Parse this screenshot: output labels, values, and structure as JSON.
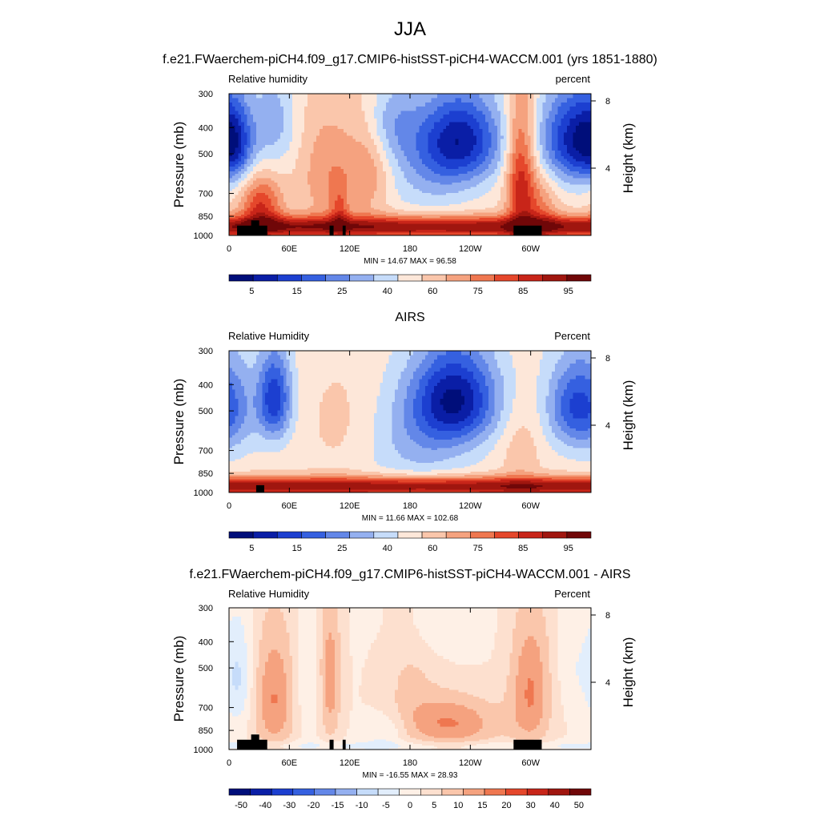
{
  "figure": {
    "title": "JJA",
    "subtitle": "f.e21.FWaerchem-piCH4.f09_g17.CMIP6-histSST-piCH4-WACCM.001 (yrs 1851-1880)"
  },
  "colors": {
    "palette_abs": [
      "#000e7a",
      "#0a1ea6",
      "#1c3fd0",
      "#3560e0",
      "#6387e8",
      "#94b0f0",
      "#c6dcfa",
      "#fde7d9",
      "#fac6ab",
      "#f5a27f",
      "#ef7750",
      "#e5472b",
      "#c82519",
      "#a0160f",
      "#700708"
    ],
    "palette_diff": [
      "#000e7a",
      "#0a1ea6",
      "#1c3fd0",
      "#3560e0",
      "#6387e8",
      "#94b0f0",
      "#c6dcfa",
      "#e2eefc",
      "#fef0e6",
      "#fde0cf",
      "#fac6ab",
      "#f5a27f",
      "#ef7750",
      "#e5472b",
      "#c82519",
      "#a0160f",
      "#700708"
    ],
    "land_mask": "#000000"
  },
  "chart_data": [
    {
      "type": "heatmap",
      "panel_title": "",
      "left_label": "Relative humidity",
      "right_label": "percent",
      "ylabel": "Pressure (mb)",
      "ylabel_right": "Height (km)",
      "x_ticks": [
        "0",
        "60E",
        "120E",
        "180",
        "120W",
        "60W"
      ],
      "x_tick_values": [
        0,
        60,
        120,
        180,
        240,
        300
      ],
      "xlim": [
        0,
        360
      ],
      "y_ticks": [
        "300",
        "400",
        "500",
        "700",
        "850",
        "1000"
      ],
      "y_tick_values": [
        300,
        400,
        500,
        700,
        850,
        1000
      ],
      "ylim": [
        300,
        1000
      ],
      "height_ticks": [
        "8",
        "4"
      ],
      "height_tick_values": [
        8,
        4
      ],
      "stats": "MIN =  14.67  MAX =  96.58",
      "colorbar_labels": [
        "5",
        "15",
        "25",
        "40",
        "60",
        "75",
        "85",
        "95"
      ],
      "palette": "abs",
      "value_range": [
        0,
        100
      ],
      "base_rh": 52,
      "field": [
        {
          "lon": 5,
          "p": 450,
          "a": -30,
          "sl": 14,
          "sp": 110
        },
        {
          "lon": 32,
          "p": 780,
          "a": 28,
          "sl": 14,
          "sp": 130
        },
        {
          "lon": 45,
          "p": 380,
          "a": -15,
          "sl": 15,
          "sp": 120
        },
        {
          "lon": 100,
          "p": 600,
          "a": 14,
          "sl": 20,
          "sp": 200
        },
        {
          "lon": 110,
          "p": 820,
          "a": 15,
          "sl": 6,
          "sp": 120
        },
        {
          "lon": 140,
          "p": 560,
          "a": 14,
          "sl": 15,
          "sp": 180
        },
        {
          "lon": 160,
          "p": 380,
          "a": -15,
          "sl": 20,
          "sp": 100
        },
        {
          "lon": 230,
          "p": 440,
          "a": -40,
          "sl": 30,
          "sp": 120
        },
        {
          "lon": 200,
          "p": 600,
          "a": -12,
          "sl": 35,
          "sp": 160
        },
        {
          "lon": 290,
          "p": 620,
          "a": 32,
          "sl": 10,
          "sp": 260
        },
        {
          "lon": 340,
          "p": 440,
          "a": -38,
          "sl": 22,
          "sp": 130
        },
        {
          "lon": 310,
          "p": 800,
          "a": 15,
          "sl": 12,
          "sp": 150
        }
      ],
      "boundary_layer": {
        "p": 930,
        "sp": 60,
        "a": 40
      },
      "land": [
        {
          "lon": [
            8,
            38
          ],
          "p": [
            920,
            1000
          ]
        },
        {
          "lon": [
            22,
            30
          ],
          "p": [
            880,
            1000
          ]
        },
        {
          "lon": [
            100,
            104
          ],
          "p": [
            920,
            1000
          ]
        },
        {
          "lon": [
            113,
            116
          ],
          "p": [
            920,
            1000
          ]
        },
        {
          "lon": [
            283,
            311
          ],
          "p": [
            920,
            1000
          ]
        }
      ]
    },
    {
      "type": "heatmap",
      "panel_title": "AIRS",
      "left_label": "Relative Humidity",
      "right_label": "Percent",
      "ylabel": "Pressure (mb)",
      "ylabel_right": "Height (km)",
      "x_ticks": [
        "0",
        "60E",
        "120E",
        "180",
        "120W",
        "60W"
      ],
      "x_tick_values": [
        0,
        60,
        120,
        180,
        240,
        300
      ],
      "xlim": [
        0,
        360
      ],
      "y_ticks": [
        "300",
        "400",
        "500",
        "700",
        "850",
        "1000"
      ],
      "y_tick_values": [
        300,
        400,
        500,
        700,
        850,
        1000
      ],
      "ylim": [
        300,
        1000
      ],
      "height_ticks": [
        "8",
        "4"
      ],
      "height_tick_values": [
        8,
        4
      ],
      "stats": "MIN =  11.66  MAX = 102.68",
      "colorbar_labels": [
        "5",
        "15",
        "25",
        "40",
        "60",
        "75",
        "85",
        "95"
      ],
      "palette": "abs",
      "value_range": [
        0,
        100
      ],
      "base_rh": 50,
      "field": [
        {
          "lon": 45,
          "p": 450,
          "a": -35,
          "sl": 12,
          "sp": 120
        },
        {
          "lon": 8,
          "p": 500,
          "a": -8,
          "sl": 15,
          "sp": 150
        },
        {
          "lon": 110,
          "p": 550,
          "a": 5,
          "sl": 25,
          "sp": 200
        },
        {
          "lon": 225,
          "p": 450,
          "a": -42,
          "sl": 30,
          "sp": 130
        },
        {
          "lon": 190,
          "p": 650,
          "a": -12,
          "sl": 35,
          "sp": 180
        },
        {
          "lon": 345,
          "p": 480,
          "a": -30,
          "sl": 20,
          "sp": 130
        },
        {
          "lon": 290,
          "p": 700,
          "a": 8,
          "sl": 15,
          "sp": 200
        }
      ],
      "boundary_layer": {
        "p": 950,
        "sp": 55,
        "a": 42
      },
      "land": [
        {
          "lon": [
            27,
            35
          ],
          "p": [
            940,
            1000
          ]
        }
      ]
    },
    {
      "type": "heatmap",
      "panel_title": "f.e21.FWaerchem-piCH4.f09_g17.CMIP6-histSST-piCH4-WACCM.001 - AIRS",
      "left_label": "Relative Humidity",
      "right_label": "Percent",
      "ylabel": "Pressure (mb)",
      "ylabel_right": "Height (km)",
      "x_ticks": [
        "0",
        "60E",
        "120E",
        "180",
        "120W",
        "60W"
      ],
      "x_tick_values": [
        0,
        60,
        120,
        180,
        240,
        300
      ],
      "xlim": [
        0,
        360
      ],
      "y_ticks": [
        "300",
        "400",
        "500",
        "700",
        "850",
        "1000"
      ],
      "y_tick_values": [
        300,
        400,
        500,
        700,
        850,
        1000
      ],
      "ylim": [
        300,
        1000
      ],
      "height_ticks": [
        "8",
        "4"
      ],
      "height_tick_values": [
        8,
        4
      ],
      "stats": "MIN = -16.55  MAX =  28.93",
      "colorbar_labels": [
        "-50",
        "-40",
        "-30",
        "-20",
        "-15",
        "-10",
        "-5",
        "0",
        "5",
        "10",
        "15",
        "20",
        "30",
        "40",
        "50"
      ],
      "palette": "diff",
      "value_range": [
        -60,
        60
      ],
      "base_rh": 3,
      "field": [
        {
          "lon": 10,
          "p": 550,
          "a": -14,
          "sl": 10,
          "sp": 180
        },
        {
          "lon": 45,
          "p": 650,
          "a": 22,
          "sl": 15,
          "sp": 250
        },
        {
          "lon": 100,
          "p": 550,
          "a": 20,
          "sl": 8,
          "sp": 250
        },
        {
          "lon": 80,
          "p": 600,
          "a": -8,
          "sl": 10,
          "sp": 200
        },
        {
          "lon": 155,
          "p": 850,
          "a": -10,
          "sl": 15,
          "sp": 90
        },
        {
          "lon": 220,
          "p": 800,
          "a": 22,
          "sl": 35,
          "sp": 130
        },
        {
          "lon": 180,
          "p": 500,
          "a": 8,
          "sl": 20,
          "sp": 200
        },
        {
          "lon": 300,
          "p": 600,
          "a": 22,
          "sl": 15,
          "sp": 250
        },
        {
          "lon": 345,
          "p": 500,
          "a": -6,
          "sl": 15,
          "sp": 150
        },
        {
          "lon": 200,
          "p": 350,
          "a": -6,
          "sl": 30,
          "sp": 80
        }
      ],
      "boundary_layer": {
        "p": 970,
        "sp": 30,
        "a": -8
      },
      "land": [
        {
          "lon": [
            8,
            38
          ],
          "p": [
            920,
            1000
          ]
        },
        {
          "lon": [
            22,
            30
          ],
          "p": [
            880,
            1000
          ]
        },
        {
          "lon": [
            100,
            104
          ],
          "p": [
            920,
            1000
          ]
        },
        {
          "lon": [
            113,
            116
          ],
          "p": [
            920,
            1000
          ]
        },
        {
          "lon": [
            283,
            311
          ],
          "p": [
            920,
            1000
          ]
        }
      ]
    }
  ]
}
